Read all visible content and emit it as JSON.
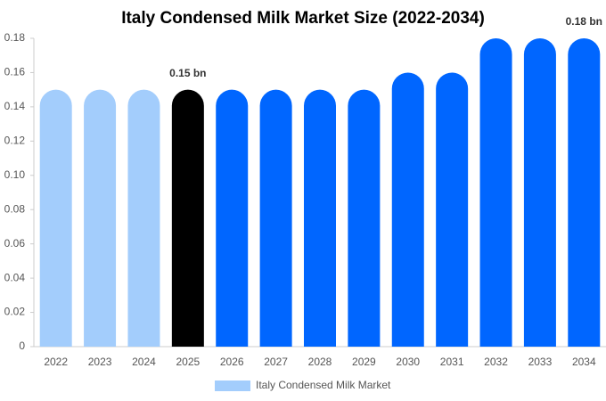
{
  "chart_data": {
    "type": "bar",
    "title": "Italy Condensed Milk Market Size (2022-2034)",
    "categories": [
      "2022",
      "2023",
      "2024",
      "2025",
      "2026",
      "2027",
      "2028",
      "2029",
      "2030",
      "2031",
      "2032",
      "2033",
      "2034"
    ],
    "series": [
      {
        "name": "Italy Condensed Milk Market",
        "color": "#a3cdfc",
        "colors": [
          "#a3cdfc",
          "#a3cdfc",
          "#a3cdfc",
          "#000000",
          "#0066ff",
          "#0066ff",
          "#0066ff",
          "#0066ff",
          "#0066ff",
          "#0066ff",
          "#0066ff",
          "#0066ff",
          "#0066ff"
        ],
        "values": [
          0.15,
          0.15,
          0.15,
          0.15,
          0.15,
          0.15,
          0.15,
          0.15,
          0.16,
          0.16,
          0.18,
          0.18,
          0.18
        ],
        "value_labels": [
          null,
          null,
          null,
          "0.15 bn",
          null,
          null,
          null,
          null,
          null,
          null,
          null,
          null,
          "0.18 bn"
        ]
      }
    ],
    "ylim": [
      0,
      0.18
    ],
    "yticks": [
      0,
      0.02,
      0.04,
      0.06,
      0.08,
      {
        "value": 0.1,
        "label": "0.10"
      },
      0.12,
      0.14,
      0.16,
      0.18
    ],
    "grid": false,
    "legend": "bottom"
  }
}
